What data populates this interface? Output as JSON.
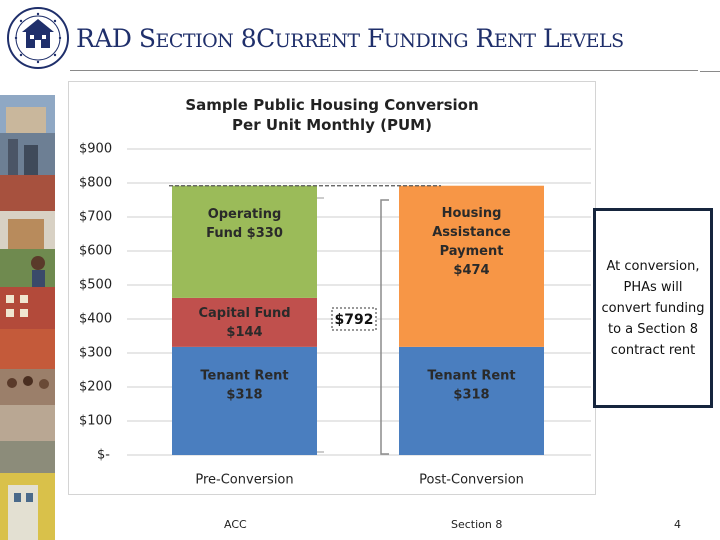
{
  "slide": {
    "title_parts": [
      "RAD S",
      "ECTION",
      " 8C",
      "URRENT",
      " F",
      "UNDING",
      " R",
      "ENT",
      " L",
      "EVELS"
    ],
    "callout_text": "At conversion, PHAs will convert funding to a Section 8 contract rent",
    "footer_left": "ACC",
    "footer_center": "Section 8",
    "page_number": "4",
    "colors": {
      "title": "#1f2f6b",
      "tenant_rent": "#4a7ebf",
      "capital_fund": "#c0504d",
      "operating_fund": "#9bbb59",
      "housing_assistance": "#f79646",
      "callout_border": "#16253d"
    },
    "icons": [
      "hud-seal-icon",
      "housing-photos"
    ]
  },
  "chart_data": {
    "type": "bar",
    "stacked": true,
    "title": "Sample Public Housing Conversion\nPer Unit Monthly (PUM)",
    "categories": [
      "Pre-Conversion",
      "Post-Conversion"
    ],
    "series": [
      {
        "name": "Tenant Rent",
        "values": [
          318,
          318
        ],
        "labels": [
          "Tenant Rent\n$318",
          "Tenant Rent\n$318"
        ],
        "color": "#4a7ebf"
      },
      {
        "name": "Capital Fund",
        "values": [
          144,
          0
        ],
        "labels": [
          "Capital Fund\n$144",
          ""
        ],
        "color": "#c0504d"
      },
      {
        "name": "Operating Fund",
        "values": [
          330,
          0
        ],
        "labels": [
          "Operating\nFund  $330",
          ""
        ],
        "color": "#9bbb59"
      },
      {
        "name": "Housing Assistance Payment",
        "values": [
          0,
          474
        ],
        "labels": [
          "",
          "Housing\nAssistance\nPayment\n$474"
        ],
        "color": "#f79646"
      }
    ],
    "y_ticks": [
      0,
      100,
      200,
      300,
      400,
      500,
      600,
      700,
      800,
      900
    ],
    "y_tick_labels": [
      "$-",
      "$100",
      "$200",
      "$300",
      "$400",
      "$500",
      "$600",
      "$700",
      "$800",
      "$900"
    ],
    "ylim": [
      0,
      900
    ],
    "grid": true,
    "annotations": [
      {
        "text": "$792",
        "value": 792,
        "dashed_reference_line": true,
        "bracket": true
      }
    ],
    "xlabel": "",
    "ylabel": ""
  }
}
